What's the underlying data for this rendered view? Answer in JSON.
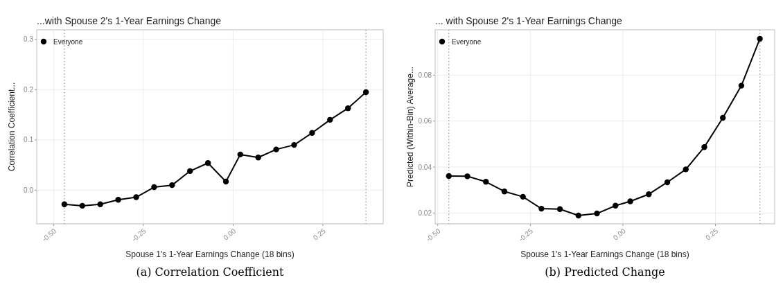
{
  "chart_data": [
    {
      "type": "line",
      "title": "...with Spouse 2's 1-Year Earnings Change",
      "xlabel": "Spouse 1's 1-Year Earnings Change (18 bins)",
      "ylabel": "Correlation Coefficient...",
      "annotations": [
        "(a) Correlation Coefficient"
      ],
      "x": [
        -0.47,
        -0.42,
        -0.37,
        -0.32,
        -0.27,
        -0.22,
        -0.17,
        -0.12,
        -0.07,
        -0.02,
        0.02,
        0.07,
        0.12,
        0.17,
        0.22,
        0.27,
        0.32,
        0.37
      ],
      "series": [
        {
          "name": "Everyone",
          "color": "#000000",
          "values": [
            -0.028,
            -0.031,
            -0.028,
            -0.019,
            -0.014,
            0.006,
            0.01,
            0.038,
            0.054,
            0.017,
            0.071,
            0.065,
            0.081,
            0.09,
            0.114,
            0.14,
            0.163,
            0.195
          ]
        }
      ],
      "xlim": [
        -0.547,
        0.418
      ],
      "ylim": [
        -0.067,
        0.319
      ],
      "xticks": [
        {
          "value": -0.5,
          "label": "-0.50"
        },
        {
          "value": -0.25,
          "label": "-0.25"
        },
        {
          "value": 0,
          "label": "0.00"
        },
        {
          "value": 0.25,
          "label": "0.25"
        }
      ],
      "yticks": [
        {
          "value": 0,
          "label": "0.0"
        },
        {
          "value": 0.1,
          "label": "0.1"
        },
        {
          "value": 0.2,
          "label": "0.2"
        },
        {
          "value": 0.3,
          "label": "0.3"
        }
      ],
      "ref_lines": [
        {
          "axis": "x",
          "value": -0.47,
          "color": "#9a9a9a",
          "line_style": "dotted"
        },
        {
          "axis": "x",
          "value": 0.37,
          "color": "#9a9a9a",
          "line_style": "dotted"
        }
      ],
      "grid": true,
      "legend": "top left",
      "marker": "circle",
      "line_style": "solid"
    },
    {
      "type": "line",
      "title": "... with Spouse 2's 1-Year Earnings Change",
      "xlabel": "Spouse 1's 1-Year Earnings Change (18 bins)",
      "ylabel": "Predicted (Within-Bin) Average...",
      "annotations": [
        "(b) Predicted Change"
      ],
      "x": [
        -0.47,
        -0.42,
        -0.37,
        -0.32,
        -0.27,
        -0.22,
        -0.17,
        -0.12,
        -0.07,
        -0.02,
        0.02,
        0.07,
        0.12,
        0.17,
        0.22,
        0.27,
        0.32,
        0.37
      ],
      "series": [
        {
          "name": "Everyone",
          "color": "#000000",
          "values": [
            0.0361,
            0.036,
            0.0336,
            0.0294,
            0.0271,
            0.0219,
            0.0217,
            0.0189,
            0.0198,
            0.0232,
            0.0251,
            0.0282,
            0.0334,
            0.039,
            0.0487,
            0.0614,
            0.0754,
            0.0958
          ]
        }
      ],
      "xlim": [
        -0.507,
        0.41
      ],
      "ylim": [
        0.0153,
        0.0997
      ],
      "xticks": [
        {
          "value": -0.5,
          "label": "-0.50"
        },
        {
          "value": -0.25,
          "label": "-0.25"
        },
        {
          "value": 0,
          "label": "0.00"
        },
        {
          "value": 0.25,
          "label": "0.25"
        }
      ],
      "yticks": [
        {
          "value": 0.02,
          "label": "0.02"
        },
        {
          "value": 0.04,
          "label": "0.04"
        },
        {
          "value": 0.06,
          "label": "0.06"
        },
        {
          "value": 0.08,
          "label": "0.08"
        }
      ],
      "ref_lines": [
        {
          "axis": "x",
          "value": -0.47,
          "color": "#9a9a9a",
          "line_style": "dotted"
        },
        {
          "axis": "x",
          "value": 0.37,
          "color": "#9a9a9a",
          "line_style": "dotted"
        }
      ],
      "grid": true,
      "legend": "top left",
      "marker": "circle",
      "line_style": "solid"
    }
  ]
}
